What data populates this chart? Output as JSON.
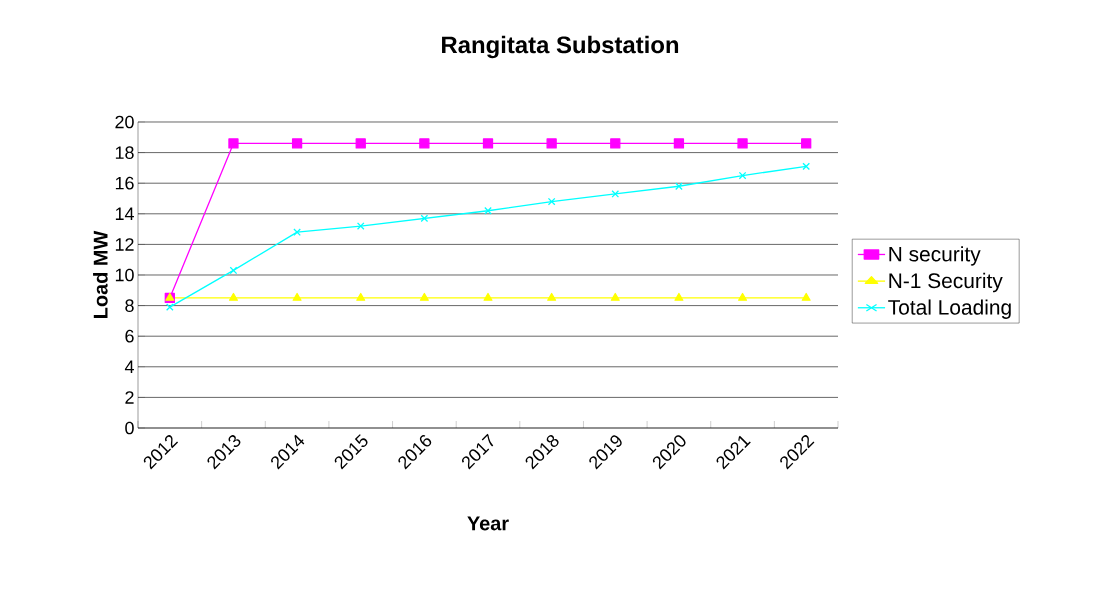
{
  "chart_data": {
    "type": "line",
    "title": "Rangitata Substation",
    "xlabel": "Year",
    "ylabel": "Load MW",
    "categories": [
      "2012",
      "2013",
      "2014",
      "2015",
      "2016",
      "2017",
      "2018",
      "2019",
      "2020",
      "2021",
      "2022"
    ],
    "series": [
      {
        "name": "N security",
        "color": "#ff00ff",
        "marker": "square",
        "values": [
          8.5,
          18.6,
          18.6,
          18.6,
          18.6,
          18.6,
          18.6,
          18.6,
          18.6,
          18.6,
          18.6
        ]
      },
      {
        "name": "N-1 Security",
        "color": "#ffff00",
        "marker": "triangle",
        "values": [
          8.5,
          8.5,
          8.5,
          8.5,
          8.5,
          8.5,
          8.5,
          8.5,
          8.5,
          8.5,
          8.5
        ]
      },
      {
        "name": "Total Loading",
        "color": "#00ffff",
        "marker": "cross",
        "values": [
          7.9,
          10.3,
          12.8,
          13.2,
          13.7,
          14.2,
          14.8,
          15.3,
          15.8,
          16.5,
          17.1
        ]
      }
    ],
    "ylim": [
      0,
      20
    ],
    "yticks": [
      0,
      2,
      4,
      6,
      8,
      10,
      12,
      14,
      16,
      18,
      20
    ],
    "grid": "y",
    "legend": "right",
    "line_style": "solid"
  }
}
